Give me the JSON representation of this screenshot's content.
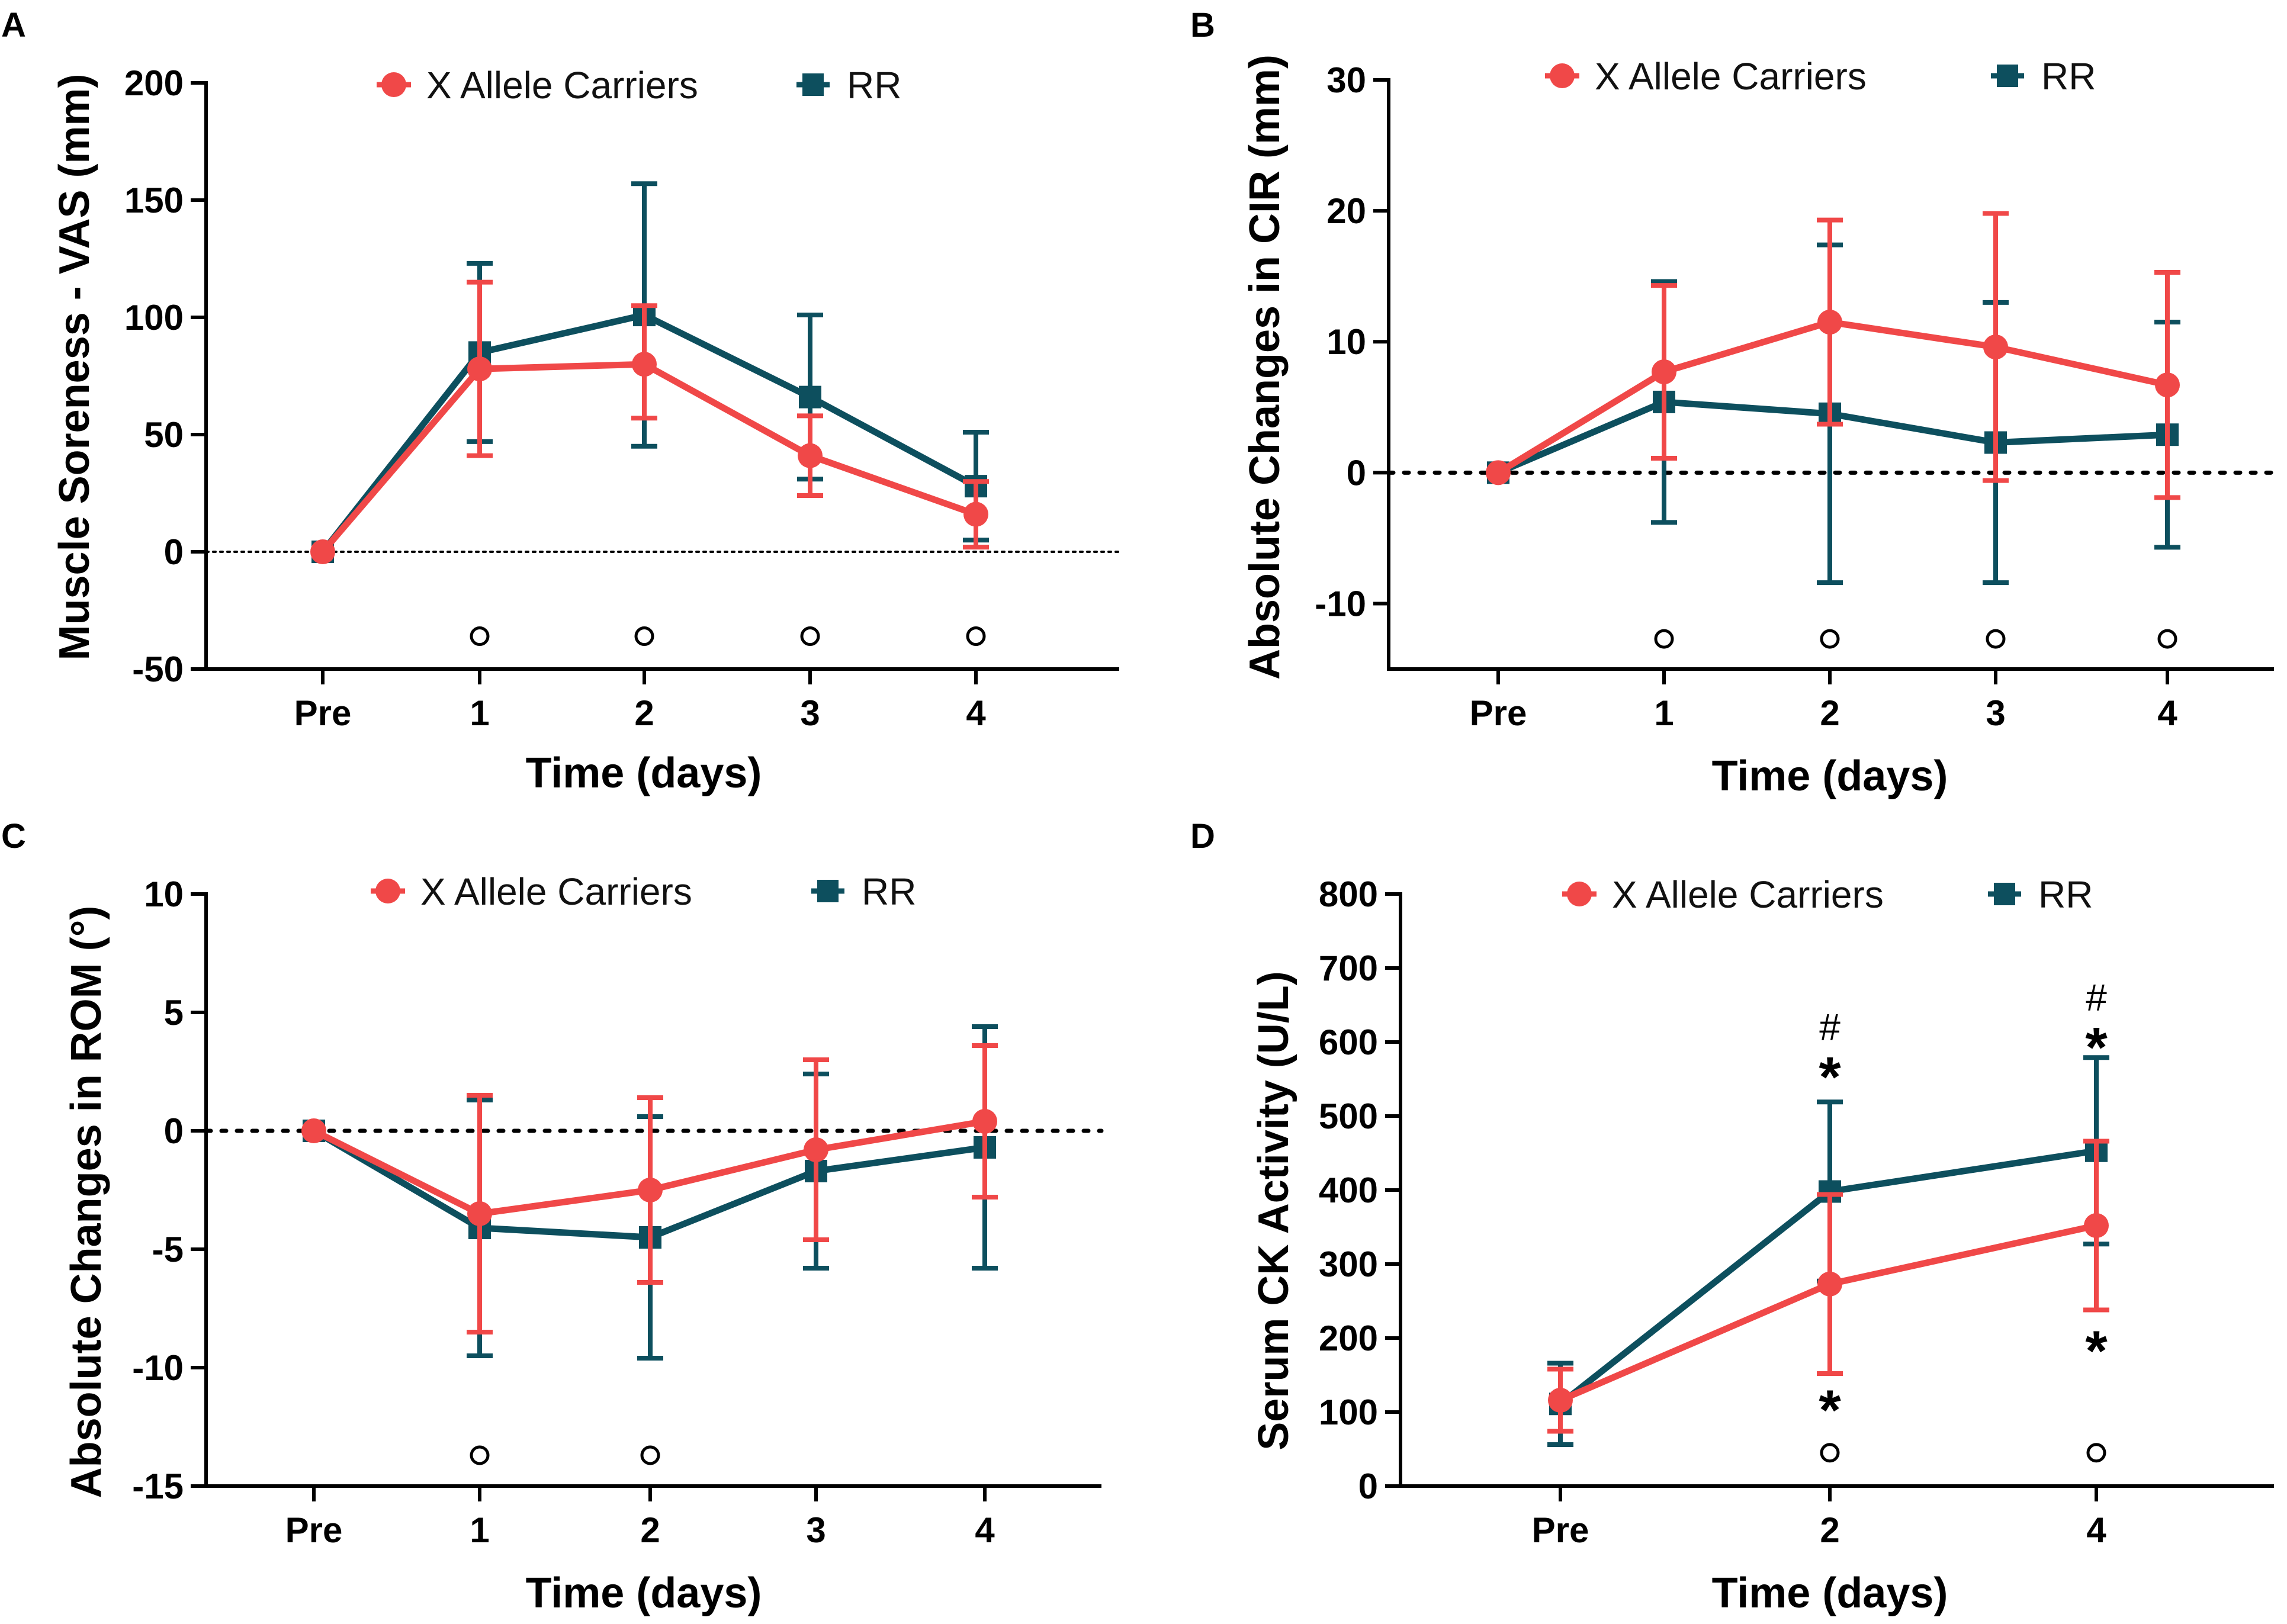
{
  "colors": {
    "x_allele": "#f04848",
    "rr": "#0d4f5e",
    "axis": "#000000"
  },
  "legend": {
    "series1": "X Allele Carriers",
    "series2": "RR"
  },
  "chart_data": [
    {
      "panel": "A",
      "type": "line",
      "title": "",
      "xlabel": "Time (days)",
      "ylabel": "Muscle Soreness - VAS (mm)",
      "categories": [
        "Pre",
        "1",
        "2",
        "3",
        "4"
      ],
      "ylim": [
        -50,
        200
      ],
      "yticks": [
        -50,
        0,
        50,
        100,
        150,
        200
      ],
      "ytick_labels": [
        "-50",
        "0",
        "50",
        "100",
        "150",
        "200"
      ],
      "reference_line": {
        "y": 0,
        "style": "fine-dotted"
      },
      "series": [
        {
          "name": "X Allele Carriers",
          "values": [
            0,
            78,
            80,
            41,
            16
          ],
          "err_plus": [
            0,
            37,
            25,
            17,
            14
          ],
          "err_minus": [
            0,
            37,
            23,
            17,
            14
          ]
        },
        {
          "name": "RR",
          "values": [
            0,
            85,
            101,
            66,
            28
          ],
          "err_plus": [
            0,
            38,
            56,
            35,
            23
          ],
          "err_minus": [
            0,
            38,
            56,
            35,
            23
          ]
        }
      ],
      "annotations": [
        {
          "text": "o",
          "x": "1",
          "y": -36
        },
        {
          "text": "o",
          "x": "2",
          "y": -36
        },
        {
          "text": "o",
          "x": "3",
          "y": -36
        },
        {
          "text": "o",
          "x": "4",
          "y": -36
        }
      ]
    },
    {
      "panel": "B",
      "type": "line",
      "title": "",
      "xlabel": "Time (days)",
      "ylabel": "Absolute Changes in CIR (mm)",
      "categories": [
        "Pre",
        "1",
        "2",
        "3",
        "4"
      ],
      "ylim": [
        -15,
        30
      ],
      "yticks": [
        -10,
        0,
        10,
        20,
        30
      ],
      "ytick_labels": [
        "-10",
        "0",
        "10",
        "20",
        "30"
      ],
      "reference_line": {
        "y": 0,
        "style": "dotted"
      },
      "series": [
        {
          "name": "X Allele Carriers",
          "values": [
            0,
            7.7,
            11.5,
            9.6,
            6.7
          ],
          "err_plus": [
            0,
            6.6,
            7.8,
            10.2,
            8.6
          ],
          "err_minus": [
            0,
            6.6,
            7.8,
            10.2,
            8.6
          ]
        },
        {
          "name": "RR",
          "values": [
            0,
            5.4,
            4.5,
            2.3,
            2.9
          ],
          "err_plus": [
            0,
            9.2,
            12.9,
            10.7,
            8.6
          ],
          "err_minus": [
            0,
            9.2,
            12.9,
            10.7,
            8.6
          ]
        }
      ],
      "annotations": [
        {
          "text": "o",
          "x": "1",
          "y": -12.7
        },
        {
          "text": "o",
          "x": "2",
          "y": -12.7
        },
        {
          "text": "o",
          "x": "3",
          "y": -12.7
        },
        {
          "text": "o",
          "x": "4",
          "y": -12.7
        }
      ]
    },
    {
      "panel": "C",
      "type": "line",
      "title": "",
      "xlabel": "Time (days)",
      "ylabel": "Absolute Changes in ROM (°)",
      "categories": [
        "Pre",
        "1",
        "2",
        "3",
        "4"
      ],
      "ylim": [
        -15,
        10
      ],
      "yticks": [
        -15,
        -10,
        -5,
        0,
        5,
        10
      ],
      "ytick_labels": [
        "-15",
        "-10",
        "-5",
        "0",
        "5",
        "10"
      ],
      "reference_line": {
        "y": 0,
        "style": "dotted"
      },
      "series": [
        {
          "name": "X Allele Carriers",
          "values": [
            0,
            -3.5,
            -2.5,
            -0.8,
            0.4
          ],
          "err_plus": [
            0,
            5.0,
            3.9,
            3.8,
            3.2
          ],
          "err_minus": [
            0,
            5.0,
            3.9,
            3.8,
            3.2
          ]
        },
        {
          "name": "RR",
          "values": [
            0,
            -4.1,
            -4.5,
            -1.7,
            -0.7
          ],
          "err_plus": [
            0,
            5.4,
            5.1,
            4.1,
            5.1
          ],
          "err_minus": [
            0,
            5.4,
            5.1,
            4.1,
            5.1
          ]
        }
      ],
      "annotations": [
        {
          "text": "o",
          "x": "1",
          "y": -13.7
        },
        {
          "text": "o",
          "x": "2",
          "y": -13.7
        }
      ]
    },
    {
      "panel": "D",
      "type": "line",
      "title": "",
      "xlabel": "Time (days)",
      "ylabel": "Serum CK Activity (U/L)",
      "categories": [
        "Pre",
        "2",
        "4"
      ],
      "ylim": [
        0,
        800
      ],
      "yticks": [
        0,
        100,
        200,
        300,
        400,
        500,
        600,
        700,
        800
      ],
      "ytick_labels": [
        "0",
        "100",
        "200",
        "300",
        "400",
        "500",
        "600",
        "700",
        "800"
      ],
      "series": [
        {
          "name": "X Allele Carriers",
          "values": [
            116,
            273,
            352
          ],
          "err_plus": [
            42,
            121,
            114
          ],
          "err_minus": [
            42,
            121,
            114
          ]
        },
        {
          "name": "RR",
          "values": [
            111,
            398,
            453
          ],
          "err_plus": [
            55,
            121,
            126
          ],
          "err_minus": [
            55,
            121,
            126
          ]
        }
      ],
      "annotations": [
        {
          "text": "#",
          "x": "2",
          "y": 620
        },
        {
          "text": "*",
          "x": "2",
          "y": 560
        },
        {
          "text": "*",
          "x": "2",
          "y": 110
        },
        {
          "text": "o",
          "x": "2",
          "y": 45
        },
        {
          "text": "#",
          "x": "4",
          "y": 660
        },
        {
          "text": "*",
          "x": "4",
          "y": 600
        },
        {
          "text": "*",
          "x": "4",
          "y": 190
        },
        {
          "text": "o",
          "x": "4",
          "y": 45
        }
      ]
    }
  ]
}
